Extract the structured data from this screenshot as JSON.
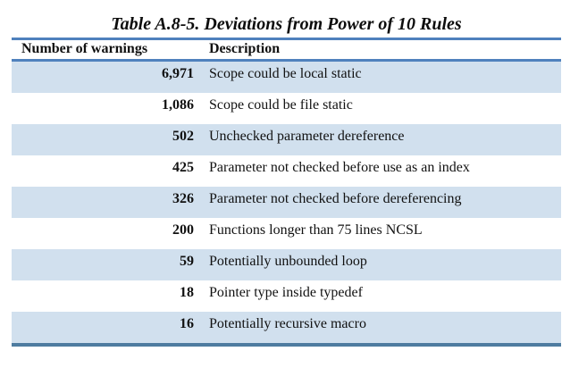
{
  "page": {
    "title": "Table A.8-5. Deviations from Power of 10 Rules"
  },
  "table": {
    "headers": {
      "warnings": "Number of warnings",
      "description": "Description"
    },
    "rows": [
      {
        "warnings": "6,971",
        "description": "Scope could be local static"
      },
      {
        "warnings": "1,086",
        "description": "Scope could be file static"
      },
      {
        "warnings": "502",
        "description": "Unchecked parameter dereference"
      },
      {
        "warnings": "425",
        "description": "Parameter not checked before use as an index"
      },
      {
        "warnings": "326",
        "description": "Parameter not checked before dereferencing"
      },
      {
        "warnings": "200",
        "description": "Functions longer than 75 lines NCSL"
      },
      {
        "warnings": "59",
        "description": "Potentially unbounded loop"
      },
      {
        "warnings": "18",
        "description": "Pointer type inside typedef"
      },
      {
        "warnings": "16",
        "description": "Potentially recursive macro"
      }
    ]
  },
  "colors": {
    "rule_top": "#4f81bd",
    "rule_bottom": "#4e7ca0",
    "row_band": "#d1e0ee",
    "text": "#111111",
    "background": "#ffffff"
  }
}
